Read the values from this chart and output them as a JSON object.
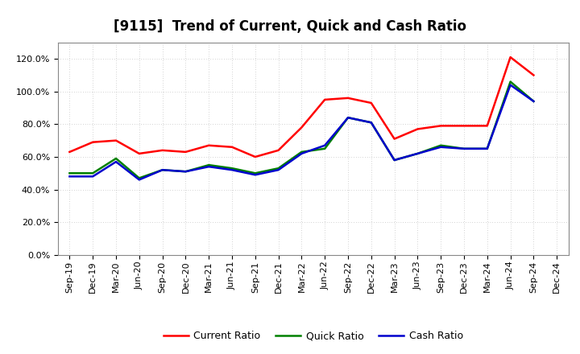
{
  "title": "[9115]  Trend of Current, Quick and Cash Ratio",
  "labels": [
    "Sep-19",
    "Dec-19",
    "Mar-20",
    "Jun-20",
    "Sep-20",
    "Dec-20",
    "Mar-21",
    "Jun-21",
    "Sep-21",
    "Dec-21",
    "Mar-22",
    "Jun-22",
    "Sep-22",
    "Dec-22",
    "Mar-23",
    "Jun-23",
    "Sep-23",
    "Dec-23",
    "Mar-24",
    "Jun-24",
    "Sep-24",
    "Dec-24"
  ],
  "current_ratio": [
    63,
    69,
    70,
    62,
    64,
    63,
    67,
    66,
    60,
    64,
    78,
    95,
    96,
    93,
    71,
    77,
    79,
    79,
    79,
    121,
    110,
    null
  ],
  "quick_ratio": [
    50,
    50,
    59,
    47,
    52,
    51,
    55,
    53,
    50,
    53,
    63,
    65,
    84,
    81,
    58,
    62,
    67,
    65,
    65,
    106,
    94,
    null
  ],
  "cash_ratio": [
    48,
    48,
    57,
    46,
    52,
    51,
    54,
    52,
    49,
    52,
    62,
    67,
    84,
    81,
    58,
    62,
    66,
    65,
    65,
    104,
    94,
    null
  ],
  "ylim": [
    0,
    130
  ],
  "yticks": [
    0,
    20,
    40,
    60,
    80,
    100,
    120
  ],
  "current_color": "#FF0000",
  "quick_color": "#008000",
  "cash_color": "#0000CD",
  "bg_color": "#FFFFFF",
  "plot_bg_color": "#FFFFFF",
  "grid_color": "#AAAAAA",
  "line_width": 1.8,
  "title_fontsize": 12,
  "tick_fontsize": 8,
  "legend_fontsize": 9
}
